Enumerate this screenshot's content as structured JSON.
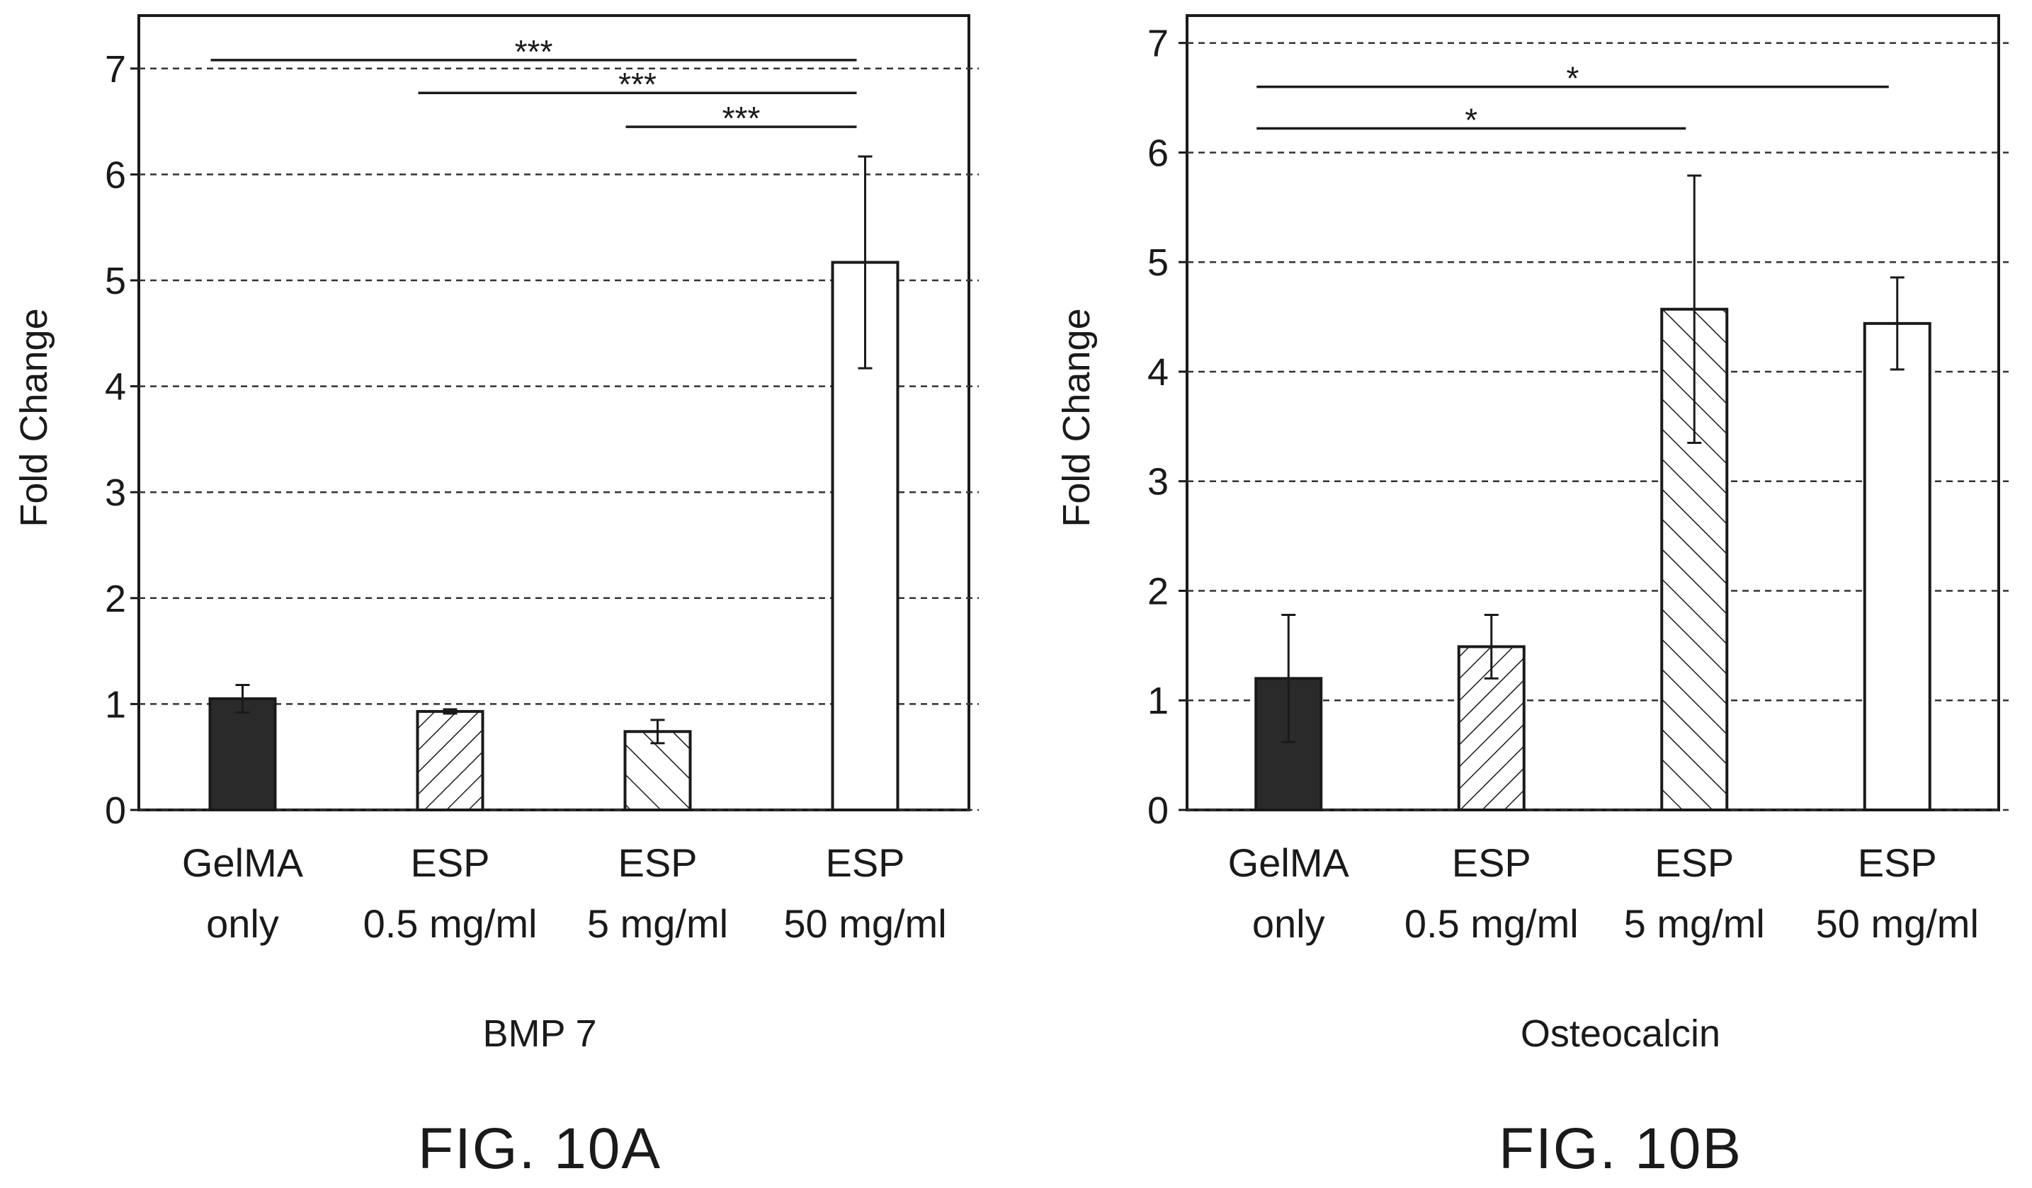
{
  "chart_data": [
    {
      "type": "bar",
      "figure_label": "FIG. 10A",
      "xlabel": "BMP 7",
      "ylabel": "Fold Change",
      "ylim": [
        0,
        7.5
      ],
      "yticks": [
        "0",
        "1",
        "2",
        "3",
        "4",
        "5",
        "6",
        "7"
      ],
      "grid": true,
      "categories": [
        [
          "GelMA",
          "only"
        ],
        [
          "ESP",
          "0.5 mg/ml"
        ],
        [
          "ESP",
          "5 mg/ml"
        ],
        [
          "ESP",
          "50 mg/ml"
        ]
      ],
      "values": [
        1.05,
        0.93,
        0.74,
        5.17
      ],
      "errors": [
        0.13,
        0.02,
        0.11,
        1.0
      ],
      "fills": [
        "solid-dark",
        "hatch-forward",
        "hatch-back",
        "white"
      ],
      "significance": [
        {
          "from": 0,
          "to": 3,
          "y": 7.08,
          "label": "***"
        },
        {
          "from": 1,
          "to": 3,
          "y": 6.77,
          "label": "***"
        },
        {
          "from": 2,
          "to": 3,
          "y": 6.45,
          "label": "***"
        }
      ]
    },
    {
      "type": "bar",
      "figure_label": "FIG. 10B",
      "xlabel": "Osteocalcin",
      "ylabel": "Fold Change",
      "ylim": [
        0,
        7.25
      ],
      "yticks": [
        "0",
        "1",
        "2",
        "3",
        "4",
        "5",
        "6",
        "7"
      ],
      "grid": true,
      "categories": [
        [
          "GelMA",
          "only"
        ],
        [
          "ESP",
          "0.5 mg/ml"
        ],
        [
          "ESP",
          "5 mg/ml"
        ],
        [
          "ESP",
          "50 mg/ml"
        ]
      ],
      "values": [
        1.2,
        1.49,
        4.57,
        4.44
      ],
      "errors": [
        0.58,
        0.29,
        1.22,
        0.42
      ],
      "fills": [
        "solid-dark",
        "hatch-forward",
        "hatch-back",
        "white"
      ],
      "significance": [
        {
          "from": 0,
          "to": 3,
          "y": 6.6,
          "label": "*"
        },
        {
          "from": 0,
          "to": 2,
          "y": 6.22,
          "label": "*"
        }
      ]
    }
  ],
  "colors": {
    "bar_dark": "#2a2a2a",
    "line": "#1a1a1a",
    "grid": "#333333",
    "background": "#ffffff"
  }
}
